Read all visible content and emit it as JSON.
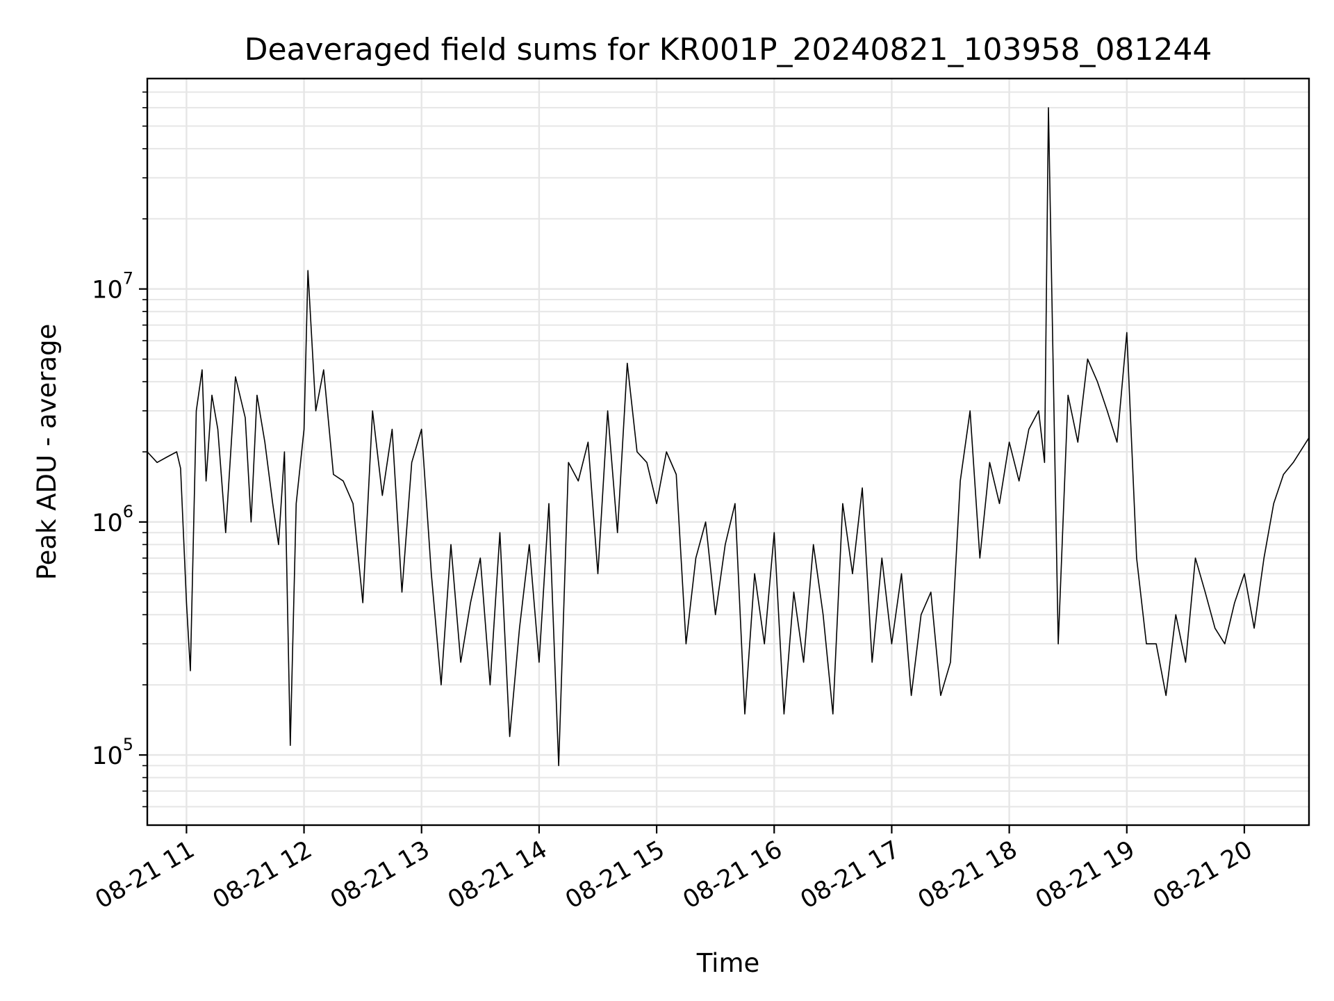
{
  "chart_data": {
    "type": "line",
    "title": "Deaveraged field sums for KR001P_20240821_103958_081244",
    "xlabel": "Time",
    "ylabel": "Peak ADU - average",
    "yscale": "log",
    "ylim": [
      50000,
      80000000
    ],
    "xlim": [
      "08-21 10:40",
      "08-21 20:33"
    ],
    "grid": true,
    "line_color": "#000000",
    "grid_color": "#e6e6e6",
    "x_ticks": [
      {
        "label": "08-21 11",
        "time": "08-21 11:00"
      },
      {
        "label": "08-21 12",
        "time": "08-21 12:00"
      },
      {
        "label": "08-21 13",
        "time": "08-21 13:00"
      },
      {
        "label": "08-21 14",
        "time": "08-21 14:00"
      },
      {
        "label": "08-21 15",
        "time": "08-21 15:00"
      },
      {
        "label": "08-21 16",
        "time": "08-21 16:00"
      },
      {
        "label": "08-21 17",
        "time": "08-21 17:00"
      },
      {
        "label": "08-21 18",
        "time": "08-21 18:00"
      },
      {
        "label": "08-21 19",
        "time": "08-21 19:00"
      },
      {
        "label": "08-21 20",
        "time": "08-21 20:00"
      }
    ],
    "y_ticks": [
      {
        "base": "10",
        "exp": "5",
        "value": 100000
      },
      {
        "base": "10",
        "exp": "6",
        "value": 1000000
      },
      {
        "base": "10",
        "exp": "7",
        "value": 10000000
      }
    ],
    "series": [
      {
        "x": [
          "08-21 10:40",
          "08-21 10:45",
          "08-21 10:50",
          "08-21 10:55",
          "08-21 10:57",
          "08-21 11:00",
          "08-21 11:02",
          "08-21 11:05",
          "08-21 11:08",
          "08-21 11:10",
          "08-21 11:13",
          "08-21 11:16",
          "08-21 11:20",
          "08-21 11:25",
          "08-21 11:30",
          "08-21 11:33",
          "08-21 11:36",
          "08-21 11:40",
          "08-21 11:44",
          "08-21 11:47",
          "08-21 11:50",
          "08-21 11:53",
          "08-21 11:56",
          "08-21 12:00",
          "08-21 12:02",
          "08-21 12:06",
          "08-21 12:10",
          "08-21 12:15",
          "08-21 12:20",
          "08-21 12:25",
          "08-21 12:30",
          "08-21 12:35",
          "08-21 12:40",
          "08-21 12:45",
          "08-21 12:50",
          "08-21 12:55",
          "08-21 13:00",
          "08-21 13:05",
          "08-21 13:10",
          "08-21 13:15",
          "08-21 13:20",
          "08-21 13:25",
          "08-21 13:30",
          "08-21 13:35",
          "08-21 13:40",
          "08-21 13:45",
          "08-21 13:50",
          "08-21 13:55",
          "08-21 14:00",
          "08-21 14:05",
          "08-21 14:10",
          "08-21 14:15",
          "08-21 14:20",
          "08-21 14:25",
          "08-21 14:30",
          "08-21 14:35",
          "08-21 14:40",
          "08-21 14:45",
          "08-21 14:50",
          "08-21 14:55",
          "08-21 15:00",
          "08-21 15:05",
          "08-21 15:10",
          "08-21 15:15",
          "08-21 15:20",
          "08-21 15:25",
          "08-21 15:30",
          "08-21 15:35",
          "08-21 15:40",
          "08-21 15:45",
          "08-21 15:50",
          "08-21 15:55",
          "08-21 16:00",
          "08-21 16:05",
          "08-21 16:10",
          "08-21 16:15",
          "08-21 16:20",
          "08-21 16:25",
          "08-21 16:30",
          "08-21 16:35",
          "08-21 16:40",
          "08-21 16:45",
          "08-21 16:50",
          "08-21 16:55",
          "08-21 17:00",
          "08-21 17:05",
          "08-21 17:10",
          "08-21 17:15",
          "08-21 17:20",
          "08-21 17:25",
          "08-21 17:30",
          "08-21 17:35",
          "08-21 17:40",
          "08-21 17:45",
          "08-21 17:50",
          "08-21 17:55",
          "08-21 18:00",
          "08-21 18:05",
          "08-21 18:10",
          "08-21 18:15",
          "08-21 18:18",
          "08-21 18:20",
          "08-21 18:25",
          "08-21 18:30",
          "08-21 18:35",
          "08-21 18:40",
          "08-21 18:45",
          "08-21 18:50",
          "08-21 18:55",
          "08-21 19:00",
          "08-21 19:05",
          "08-21 19:10",
          "08-21 19:15",
          "08-21 19:20",
          "08-21 19:25",
          "08-21 19:30",
          "08-21 19:35",
          "08-21 19:40",
          "08-21 19:45",
          "08-21 19:50",
          "08-21 19:55",
          "08-21 20:00",
          "08-21 20:05",
          "08-21 20:10",
          "08-21 20:15",
          "08-21 20:20",
          "08-21 20:25",
          "08-21 20:33"
        ],
        "values": [
          2000000,
          1800000,
          1900000,
          2000000,
          1700000,
          450000,
          230000,
          3000000,
          4500000,
          1500000,
          3500000,
          2500000,
          900000,
          4200000,
          2800000,
          1000000,
          3500000,
          2200000,
          1200000,
          800000,
          2000000,
          110000,
          1200000,
          2500000,
          12000000,
          3000000,
          4500000,
          1600000,
          1500000,
          1200000,
          450000,
          3000000,
          1300000,
          2500000,
          500000,
          1800000,
          2500000,
          600000,
          200000,
          800000,
          250000,
          450000,
          700000,
          200000,
          900000,
          120000,
          350000,
          800000,
          250000,
          1200000,
          90000,
          1800000,
          1500000,
          2200000,
          600000,
          3000000,
          900000,
          4800000,
          2000000,
          1800000,
          1200000,
          2000000,
          1600000,
          300000,
          700000,
          1000000,
          400000,
          800000,
          1200000,
          150000,
          600000,
          300000,
          900000,
          150000,
          500000,
          250000,
          800000,
          400000,
          150000,
          1200000,
          600000,
          1400000,
          250000,
          700000,
          300000,
          600000,
          180000,
          400000,
          500000,
          180000,
          250000,
          1500000,
          3000000,
          700000,
          1800000,
          1200000,
          2200000,
          1500000,
          2500000,
          3000000,
          1800000,
          60000000,
          300000,
          3500000,
          2200000,
          5000000,
          4000000,
          3000000,
          2200000,
          6500000,
          700000,
          300000,
          300000,
          180000,
          400000,
          250000,
          700000,
          500000,
          350000,
          300000,
          450000,
          600000,
          350000,
          700000,
          1200000,
          1600000,
          1800000,
          2300000
        ]
      }
    ]
  }
}
